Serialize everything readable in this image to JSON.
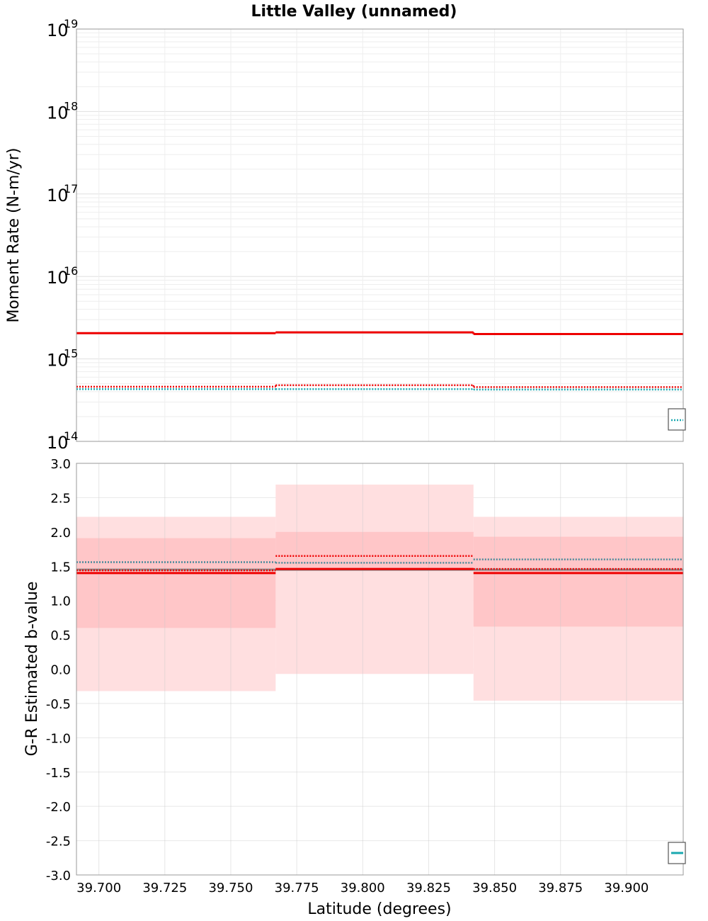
{
  "chart_data": [
    {
      "type": "line",
      "title": "Little Valley (unnamed)",
      "ylabel": "Moment Rate (N-m/yr)",
      "xlabel": "",
      "yscale": "log",
      "ylim": [
        100000000000000.0,
        1e+19
      ],
      "xlim": [
        39.6915,
        39.9215
      ],
      "grid": true,
      "y_tick_bases": [
        "10",
        "10",
        "10",
        "10",
        "10",
        "10"
      ],
      "y_tick_exponents": [
        "14",
        "15",
        "16",
        "17",
        "18",
        "19"
      ],
      "y_tick_values": [
        100000000000000.0,
        1000000000000000.0,
        1e+16,
        1e+17,
        1e+18,
        1e+19
      ],
      "x_bins": [
        39.6915,
        39.767,
        39.842,
        39.9215
      ],
      "series": [
        {
          "style": "solid",
          "color": "#ee0000",
          "values": [
            2050000000000000.0,
            2100000000000000.0,
            2000000000000000.0
          ]
        },
        {
          "style": "dotted",
          "color": "#ee0000",
          "values": [
            460000000000000.0,
            480000000000000.0,
            455000000000000.0
          ]
        },
        {
          "style": "dotted",
          "color": "#1aa8b0",
          "values": [
            430000000000000.0,
            430000000000000.0,
            425000000000000.0
          ]
        }
      ],
      "legend": "bottom-right"
    },
    {
      "type": "line",
      "title": "",
      "ylabel": "G-R Estimated b-value",
      "xlabel": "Latitude (degrees)",
      "ylim": [
        -3.0,
        3.0
      ],
      "xlim": [
        39.6915,
        39.9215
      ],
      "grid": true,
      "y_ticks": [
        "-3.0",
        "-2.5",
        "-2.0",
        "-1.5",
        "-1.0",
        "-0.5",
        "0.0",
        "0.5",
        "1.0",
        "1.5",
        "2.0",
        "2.5",
        "3.0"
      ],
      "x_ticks": [
        "39.700",
        "39.725",
        "39.750",
        "39.775",
        "39.800",
        "39.825",
        "39.850",
        "39.875",
        "39.900"
      ],
      "x_bins": [
        39.6915,
        39.767,
        39.842,
        39.9215
      ],
      "bands": [
        {
          "color": "#ffdfe0",
          "lower": [
            -0.32,
            -0.07,
            -0.46
          ],
          "upper": [
            2.22,
            2.69,
            2.22
          ]
        },
        {
          "color": "#ffc6c8",
          "lower": [
            0.6,
            1.45,
            0.62
          ],
          "upper": [
            1.91,
            2.0,
            1.93
          ]
        }
      ],
      "series": [
        {
          "style": "solid",
          "color": "#888888",
          "values": [
            1.45,
            1.45,
            1.45
          ]
        },
        {
          "style": "solid",
          "color": "#ee0000",
          "values": [
            1.4,
            1.46,
            1.4
          ]
        },
        {
          "style": "dotted",
          "color": "#ee0000",
          "values": [
            1.44,
            1.65,
            1.46
          ]
        },
        {
          "style": "dotted",
          "color": "#4a8a9a",
          "values": [
            1.56,
            1.55,
            1.6
          ]
        }
      ],
      "legend": "bottom-right"
    }
  ]
}
